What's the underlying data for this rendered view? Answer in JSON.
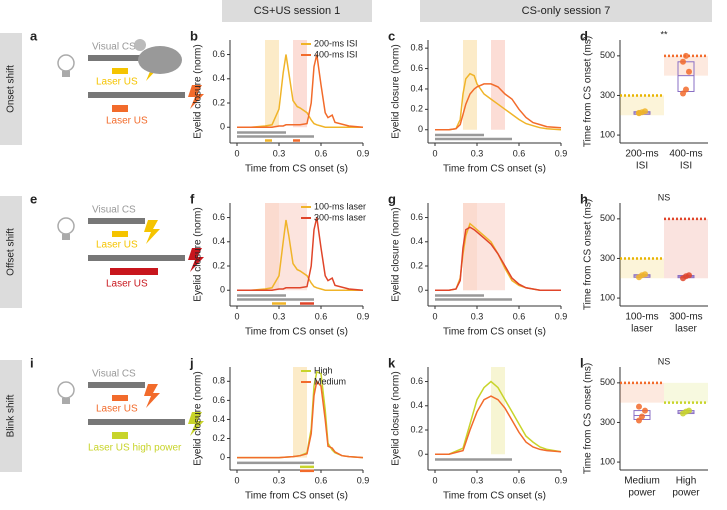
{
  "header": [
    "CS+US session 1",
    "CS-only session 7"
  ],
  "rows": [
    "Onset shift",
    "Offset shift",
    "Blink shift"
  ],
  "schematics": [
    {
      "letter": "a",
      "cs": "Visual CS",
      "us": [
        "Laser US",
        "Laser US"
      ],
      "colors": [
        "#f5c400",
        "#f26b2b"
      ]
    },
    {
      "letter": "e",
      "cs": "Visual CS",
      "us": [
        "Laser US",
        "Laser US"
      ],
      "colors": [
        "#f5c400",
        "#c8161d"
      ]
    },
    {
      "letter": "i",
      "cs": "Visual CS",
      "us": [
        "Laser US",
        "Laser US high power"
      ],
      "colors": [
        "#f26b2b",
        "#c8d42a"
      ]
    }
  ],
  "chart_data": [
    {
      "type": "line",
      "letter": "b",
      "xlabel": "Time from CS onset (s)",
      "ylabel": "Eyelid closure (norm)",
      "legend": "upper right",
      "x": [
        0,
        0.1,
        0.2,
        0.25,
        0.3,
        0.33,
        0.35,
        0.37,
        0.4,
        0.43,
        0.45,
        0.5,
        0.53,
        0.55,
        0.57,
        0.6,
        0.63,
        0.65,
        0.68,
        0.7,
        0.8,
        0.9
      ],
      "series": [
        {
          "name": "200-ms ISI",
          "color": "#f0b429",
          "values": [
            0,
            0,
            0.01,
            0.02,
            0.15,
            0.45,
            0.6,
            0.45,
            0.22,
            0.17,
            0.16,
            0.12,
            0.06,
            0.03,
            0.02,
            0.01,
            0,
            0,
            0,
            0,
            0,
            0
          ]
        },
        {
          "name": "400-ms ISI",
          "color": "#f26b2b",
          "values": [
            0,
            0,
            0,
            0,
            0.01,
            0.01,
            0.02,
            0.02,
            0.02,
            0.02,
            0.02,
            0.03,
            0.2,
            0.5,
            0.6,
            0.35,
            0.12,
            0.08,
            0.1,
            0.04,
            0.01,
            0
          ]
        }
      ],
      "shades": [
        {
          "start": 0.2,
          "end": 0.3,
          "color": "#fbe3b0"
        },
        {
          "start": 0.4,
          "end": 0.5,
          "color": "#fbcfc4"
        }
      ],
      "stimuli": [
        [
          {
            "start": 0,
            "end": 0.35,
            "color": "#999999"
          }
        ],
        [
          {
            "start": 0,
            "end": 0.55,
            "color": "#999999"
          }
        ],
        [
          {
            "start": 0.2,
            "end": 0.25,
            "color": "#f0b429"
          },
          {
            "start": 0.4,
            "end": 0.45,
            "color": "#f26b2b"
          }
        ]
      ],
      "xlim": [
        -0.05,
        0.9
      ],
      "xticks": [
        0,
        0.3,
        0.6,
        0.9
      ],
      "ylim": [
        -0.13,
        0.72
      ],
      "yticks": [
        0,
        0.2,
        0.4,
        0.6
      ]
    },
    {
      "type": "line",
      "letter": "c",
      "xlabel": "Time from CS onset (s)",
      "ylabel": "Eyelid closure (norm)",
      "x": [
        0,
        0.1,
        0.15,
        0.18,
        0.2,
        0.22,
        0.25,
        0.28,
        0.3,
        0.35,
        0.4,
        0.45,
        0.5,
        0.55,
        0.6,
        0.65,
        0.7,
        0.75,
        0.8,
        0.9
      ],
      "series": [
        {
          "color": "#f0b429",
          "values": [
            0,
            0,
            0.01,
            0.1,
            0.35,
            0.5,
            0.55,
            0.53,
            0.45,
            0.35,
            0.3,
            0.25,
            0.2,
            0.15,
            0.1,
            0.06,
            0.04,
            0.02,
            0.01,
            0
          ]
        },
        {
          "color": "#f26b2b",
          "values": [
            0,
            0,
            0.01,
            0.05,
            0.15,
            0.25,
            0.35,
            0.4,
            0.42,
            0.45,
            0.45,
            0.42,
            0.35,
            0.3,
            0.2,
            0.12,
            0.07,
            0.05,
            0.03,
            0.02
          ]
        }
      ],
      "shades": [
        {
          "start": 0.2,
          "end": 0.3,
          "color": "#fbe3b0"
        },
        {
          "start": 0.4,
          "end": 0.5,
          "color": "#fbcfc4"
        }
      ],
      "stimuli": [
        [
          {
            "start": 0,
            "end": 0.35,
            "color": "#999999"
          }
        ],
        [
          {
            "start": 0,
            "end": 0.55,
            "color": "#999999"
          }
        ]
      ],
      "xlim": [
        -0.05,
        0.9
      ],
      "xticks": [
        0,
        0.3,
        0.6,
        0.9
      ],
      "ylim": [
        -0.13,
        0.88
      ],
      "yticks": [
        0,
        0.2,
        0.4,
        0.6,
        0.8
      ]
    },
    {
      "type": "box",
      "letter": "d",
      "ylabel": "Time from CS onset (ms)",
      "annotation": "**",
      "categories": [
        [
          "200-ms",
          "ISI"
        ],
        [
          "400-ms",
          "ISI"
        ]
      ],
      "groups": [
        {
          "color": "#f0b429",
          "points": [
            210,
            215,
            220,
            212
          ],
          "q1": 205,
          "median": 212,
          "q3": 218,
          "target": 300,
          "target_color": "#e8b400",
          "band": [
            200,
            300
          ]
        },
        {
          "color": "#f26b2b",
          "points": [
            310,
            330,
            420,
            470,
            500
          ],
          "q1": 320,
          "median": 400,
          "q3": 470,
          "target": 500,
          "target_color": "#f26b2b",
          "band": [
            400,
            500
          ]
        }
      ],
      "ylim": [
        60,
        580
      ],
      "yticks": [
        100,
        300,
        500
      ]
    },
    {
      "type": "line",
      "letter": "f",
      "xlabel": "Time from CS onset (s)",
      "ylabel": "Eyelid closure (norm)",
      "legend": "upper right",
      "x": [
        0,
        0.1,
        0.2,
        0.25,
        0.3,
        0.33,
        0.35,
        0.37,
        0.4,
        0.43,
        0.45,
        0.5,
        0.53,
        0.55,
        0.57,
        0.6,
        0.63,
        0.65,
        0.68,
        0.7,
        0.8,
        0.9
      ],
      "series": [
        {
          "name": "100-ms laser",
          "color": "#f0b429",
          "values": [
            0,
            0,
            0.01,
            0.02,
            0.12,
            0.4,
            0.58,
            0.45,
            0.22,
            0.17,
            0.16,
            0.12,
            0.06,
            0.03,
            0.02,
            0.01,
            0,
            0,
            0,
            0,
            0,
            0
          ]
        },
        {
          "name": "300-ms laser",
          "color": "#e0452a",
          "values": [
            0,
            0,
            0,
            0,
            0.01,
            0.01,
            0.02,
            0.02,
            0.02,
            0.02,
            0.02,
            0.03,
            0.2,
            0.5,
            0.6,
            0.35,
            0.12,
            0.08,
            0.1,
            0.04,
            0.01,
            0
          ]
        }
      ],
      "shades": [
        {
          "start": 0.2,
          "end": 0.3,
          "color": "#f8d2b8"
        },
        {
          "start": 0.2,
          "end": 0.5,
          "color": "#fbd8d0"
        }
      ],
      "stimuli": [
        [
          {
            "start": 0,
            "end": 0.35,
            "color": "#999999"
          }
        ],
        [
          {
            "start": 0,
            "end": 0.55,
            "color": "#999999"
          }
        ],
        [
          {
            "start": 0.25,
            "end": 0.35,
            "color": "#f0b429"
          },
          {
            "start": 0.45,
            "end": 0.55,
            "color": "#e0452a"
          }
        ]
      ],
      "xlim": [
        -0.05,
        0.9
      ],
      "xticks": [
        0,
        0.3,
        0.6,
        0.9
      ],
      "ylim": [
        -0.13,
        0.72
      ],
      "yticks": [
        0,
        0.2,
        0.4,
        0.6
      ]
    },
    {
      "type": "line",
      "letter": "g",
      "xlabel": "Time from CS onset (s)",
      "ylabel": "Eyelid closure (norm)",
      "x": [
        0,
        0.1,
        0.15,
        0.18,
        0.2,
        0.22,
        0.25,
        0.28,
        0.3,
        0.35,
        0.4,
        0.45,
        0.5,
        0.55,
        0.6,
        0.65,
        0.7,
        0.75,
        0.8,
        0.9
      ],
      "series": [
        {
          "color": "#f0b429",
          "values": [
            0,
            0,
            0.01,
            0.1,
            0.3,
            0.45,
            0.55,
            0.52,
            0.5,
            0.45,
            0.4,
            0.3,
            0.18,
            0.08,
            0.04,
            0.02,
            0.01,
            0,
            0,
            0
          ]
        },
        {
          "color": "#e0452a",
          "values": [
            0,
            0,
            0.01,
            0.08,
            0.35,
            0.5,
            0.52,
            0.5,
            0.48,
            0.43,
            0.38,
            0.3,
            0.2,
            0.1,
            0.05,
            0.02,
            0.01,
            0,
            0,
            0
          ]
        }
      ],
      "shades": [
        {
          "start": 0.2,
          "end": 0.3,
          "color": "#f8d2b8"
        },
        {
          "start": 0.2,
          "end": 0.5,
          "color": "#fbd8d0"
        }
      ],
      "stimuli": [
        [
          {
            "start": 0,
            "end": 0.35,
            "color": "#999999"
          }
        ],
        [
          {
            "start": 0,
            "end": 0.55,
            "color": "#999999"
          }
        ]
      ],
      "xlim": [
        -0.05,
        0.9
      ],
      "xticks": [
        0,
        0.3,
        0.6,
        0.9
      ],
      "ylim": [
        -0.13,
        0.72
      ],
      "yticks": [
        0,
        0.2,
        0.4,
        0.6
      ]
    },
    {
      "type": "box",
      "letter": "h",
      "ylabel": "Time from CS onset (ms)",
      "annotation": "NS",
      "categories": [
        [
          "100-ms",
          "laser"
        ],
        [
          "300-ms",
          "laser"
        ]
      ],
      "groups": [
        {
          "color": "#f0b429",
          "points": [
            205,
            215,
            220
          ],
          "q1": 205,
          "median": 212,
          "q3": 218,
          "target": 300,
          "target_color": "#e8b400",
          "band": [
            200,
            300
          ]
        },
        {
          "color": "#e0452a",
          "points": [
            200,
            210,
            215
          ],
          "q1": 203,
          "median": 208,
          "q3": 214,
          "target": 500,
          "target_color": "#e0452a",
          "band": [
            200,
            500
          ]
        }
      ],
      "ylim": [
        60,
        580
      ],
      "yticks": [
        100,
        300,
        500
      ]
    },
    {
      "type": "line",
      "letter": "j",
      "xlabel": "Time from CS onset (s)",
      "ylabel": "Eyelid closure (norm)",
      "legend": "upper right",
      "x": [
        0,
        0.1,
        0.2,
        0.3,
        0.4,
        0.45,
        0.5,
        0.53,
        0.55,
        0.57,
        0.6,
        0.63,
        0.65,
        0.68,
        0.7,
        0.75,
        0.8,
        0.9
      ],
      "series": [
        {
          "name": "High",
          "color": "#c8d42a",
          "values": [
            0,
            0,
            0,
            0,
            0.01,
            0.02,
            0.05,
            0.3,
            0.75,
            0.9,
            0.88,
            0.5,
            0.15,
            0.08,
            0.05,
            0.02,
            0.01,
            0
          ]
        },
        {
          "name": "Medium",
          "color": "#f26b2b",
          "values": [
            0,
            0,
            0,
            0,
            0.01,
            0.02,
            0.04,
            0.25,
            0.65,
            0.8,
            0.75,
            0.4,
            0.12,
            0.1,
            0.06,
            0.02,
            0.01,
            0
          ]
        }
      ],
      "shades": [
        {
          "start": 0.4,
          "end": 0.5,
          "color": "#fbe3b0"
        }
      ],
      "stimuli": [
        [
          {
            "start": 0,
            "end": 0.55,
            "color": "#999999"
          }
        ],
        [
          {
            "start": 0.45,
            "end": 0.55,
            "color": "#c8d42a"
          }
        ],
        [
          {
            "start": 0.45,
            "end": 0.55,
            "color": "#f26b2b"
          }
        ]
      ],
      "xlim": [
        -0.05,
        0.9
      ],
      "xticks": [
        0,
        0.3,
        0.6,
        0.9
      ],
      "ylim": [
        -0.13,
        0.95
      ],
      "yticks": [
        0,
        0.2,
        0.4,
        0.6,
        0.8
      ]
    },
    {
      "type": "line",
      "letter": "k",
      "xlabel": "Time from CS onset (s)",
      "ylabel": "Eyelid closure (norm)",
      "x": [
        0,
        0.1,
        0.2,
        0.25,
        0.3,
        0.35,
        0.4,
        0.45,
        0.5,
        0.55,
        0.6,
        0.65,
        0.7,
        0.75,
        0.8,
        0.9
      ],
      "series": [
        {
          "color": "#c8d42a",
          "values": [
            0,
            0,
            0.05,
            0.25,
            0.45,
            0.55,
            0.6,
            0.55,
            0.45,
            0.35,
            0.25,
            0.15,
            0.1,
            0.06,
            0.04,
            0.02
          ]
        },
        {
          "color": "#f26b2b",
          "values": [
            0,
            0,
            0.03,
            0.2,
            0.35,
            0.45,
            0.48,
            0.45,
            0.38,
            0.28,
            0.18,
            0.1,
            0.06,
            0.04,
            0.03,
            0.02
          ]
        }
      ],
      "shades": [
        {
          "start": 0.4,
          "end": 0.5,
          "color": "#f3f1c0"
        }
      ],
      "stimuli": [
        [
          {
            "start": 0,
            "end": 0.55,
            "color": "#999999"
          }
        ]
      ],
      "xlim": [
        -0.05,
        0.9
      ],
      "xticks": [
        0,
        0.3,
        0.6,
        0.9
      ],
      "ylim": [
        -0.13,
        0.72
      ],
      "yticks": [
        0,
        0.2,
        0.4,
        0.6
      ]
    },
    {
      "type": "box",
      "letter": "l",
      "ylabel": "Time from CS onset (ms)",
      "annotation": "NS",
      "categories": [
        [
          "Medium",
          "power"
        ],
        [
          "High",
          "power"
        ]
      ],
      "groups": [
        {
          "color": "#f26b2b",
          "points": [
            310,
            330,
            360,
            380
          ],
          "q1": 315,
          "median": 335,
          "q3": 360,
          "target": 500,
          "target_color": "#f26b2b",
          "band": [
            400,
            500
          ]
        },
        {
          "color": "#c8d42a",
          "points": [
            345,
            355,
            360
          ],
          "q1": 345,
          "median": 352,
          "q3": 360,
          "target": 400,
          "target_color": "#c8d42a",
          "band": [
            400,
            500
          ]
        }
      ],
      "ylim": [
        60,
        580
      ],
      "yticks": [
        100,
        300,
        500
      ]
    }
  ]
}
